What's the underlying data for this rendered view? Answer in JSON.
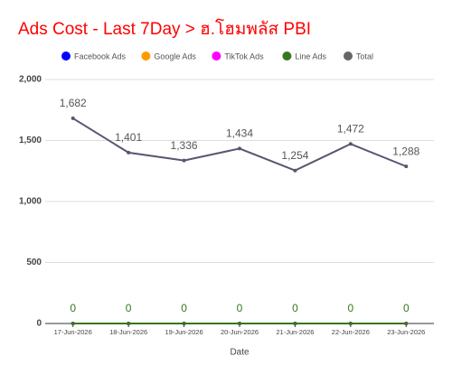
{
  "chart_data": {
    "type": "line",
    "title": "Ads Cost - Last 7Day > ฮ.โฮมพลัส PBI",
    "title_color": "#ff0000",
    "x_label": "Date",
    "categories": [
      "17-Jun-2026",
      "18-Jun-2026",
      "19-Jun-2026",
      "20-Jun-2026",
      "21-Jun-2026",
      "22-Jun-2026",
      "23-Jun-2026"
    ],
    "series": [
      {
        "name": "Facebook Ads",
        "color": "#0000ff",
        "values": [
          0,
          0,
          0,
          0,
          0,
          0,
          0
        ]
      },
      {
        "name": "Google Ads",
        "color": "#ff9900",
        "values": [
          0,
          0,
          0,
          0,
          0,
          0,
          0
        ]
      },
      {
        "name": "TikTok Ads",
        "color": "#ff00ff",
        "values": [
          0,
          0,
          0,
          0,
          0,
          0,
          0
        ]
      },
      {
        "name": "Line Ads",
        "color": "#38761d",
        "values": [
          0,
          0,
          0,
          0,
          0,
          0,
          0
        ],
        "show_labels": true
      },
      {
        "name": "Total",
        "color": "#5a5470",
        "legend_color": "#666666",
        "values": [
          1682,
          1401,
          1336,
          1434,
          1254,
          1472,
          1288
        ],
        "value_labels": [
          "1,682",
          "1,401",
          "1,336",
          "1,434",
          "1,254",
          "1,472",
          "1,288"
        ],
        "show_labels": true
      }
    ],
    "ylim": [
      0,
      2000
    ],
    "yticks": [
      0,
      500,
      {
        "value": 1000,
        "label": "1,000"
      },
      {
        "value": 1500,
        "label": "1,500"
      },
      {
        "value": 2000,
        "label": "2,000"
      }
    ],
    "grid": true,
    "legend": "top"
  }
}
